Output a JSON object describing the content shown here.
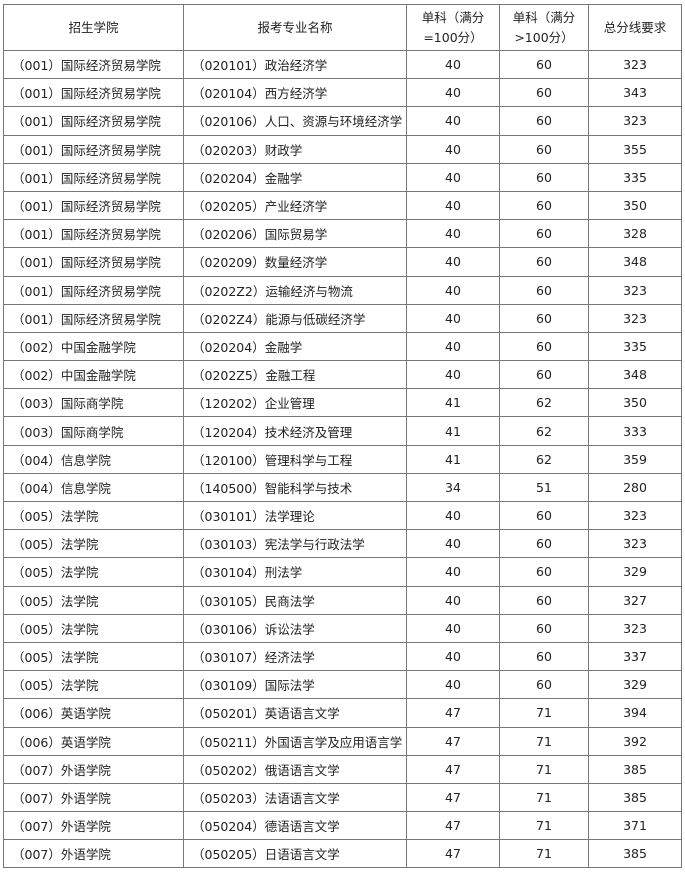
{
  "headers": [
    "招生学院",
    "报考专业名称",
    "单科（满分=100分）",
    "单科（满分>100分）",
    "总分线要求"
  ],
  "rows": [
    [
      "（001）国际经济贸易学院",
      "（020101）政治经济学",
      "40",
      "60",
      "323"
    ],
    [
      "（001）国际经济贸易学院",
      "（020104）西方经济学",
      "40",
      "60",
      "343"
    ],
    [
      "（001）国际经济贸易学院",
      "（020106）人口、资源与环境经济学",
      "40",
      "60",
      "323"
    ],
    [
      "（001）国际经济贸易学院",
      "（020203）财政学",
      "40",
      "60",
      "355"
    ],
    [
      "（001）国际经济贸易学院",
      "（020204）金融学",
      "40",
      "60",
      "335"
    ],
    [
      "（001）国际经济贸易学院",
      "（020205）产业经济学",
      "40",
      "60",
      "350"
    ],
    [
      "（001）国际经济贸易学院",
      "（020206）国际贸易学",
      "40",
      "60",
      "328"
    ],
    [
      "（001）国际经济贸易学院",
      "（020209）数量经济学",
      "40",
      "60",
      "348"
    ],
    [
      "（001）国际经济贸易学院",
      "（0202Z2）运输经济与物流",
      "40",
      "60",
      "323"
    ],
    [
      "（001）国际经济贸易学院",
      "（0202Z4）能源与低碳经济学",
      "40",
      "60",
      "323"
    ],
    [
      "（002）中国金融学院",
      "（020204）金融学",
      "40",
      "60",
      "335"
    ],
    [
      "（002）中国金融学院",
      "（0202Z5）金融工程",
      "40",
      "60",
      "348"
    ],
    [
      "（003）国际商学院",
      "（120202）企业管理",
      "41",
      "62",
      "350"
    ],
    [
      "（003）国际商学院",
      "（120204）技术经济及管理",
      "41",
      "62",
      "333"
    ],
    [
      "（004）信息学院",
      "（120100）管理科学与工程",
      "41",
      "62",
      "359"
    ],
    [
      "（004）信息学院",
      "（140500）智能科学与技术",
      "34",
      "51",
      "280"
    ],
    [
      "（005）法学院",
      "（030101）法学理论",
      "40",
      "60",
      "323"
    ],
    [
      "（005）法学院",
      "（030103）宪法学与行政法学",
      "40",
      "60",
      "323"
    ],
    [
      "（005）法学院",
      "（030104）刑法学",
      "40",
      "60",
      "329"
    ],
    [
      "（005）法学院",
      "（030105）民商法学",
      "40",
      "60",
      "327"
    ],
    [
      "（005）法学院",
      "（030106）诉讼法学",
      "40",
      "60",
      "323"
    ],
    [
      "（005）法学院",
      "（030107）经济法学",
      "40",
      "60",
      "337"
    ],
    [
      "（005）法学院",
      "（030109）国际法学",
      "40",
      "60",
      "329"
    ],
    [
      "（006）英语学院",
      "（050201）英语语言文学",
      "47",
      "71",
      "394"
    ],
    [
      "（006）英语学院",
      "（050211）外国语言学及应用语言学",
      "47",
      "71",
      "392"
    ],
    [
      "（007）外语学院",
      "（050202）俄语语言文学",
      "47",
      "71",
      "385"
    ],
    [
      "（007）外语学院",
      "（050203）法语语言文学",
      "47",
      "71",
      "385"
    ],
    [
      "（007）外语学院",
      "（050204）德语语言文学",
      "47",
      "71",
      "371"
    ],
    [
      "（007）外语学院",
      "（050205）日语语言文学",
      "47",
      "71",
      "385"
    ]
  ]
}
